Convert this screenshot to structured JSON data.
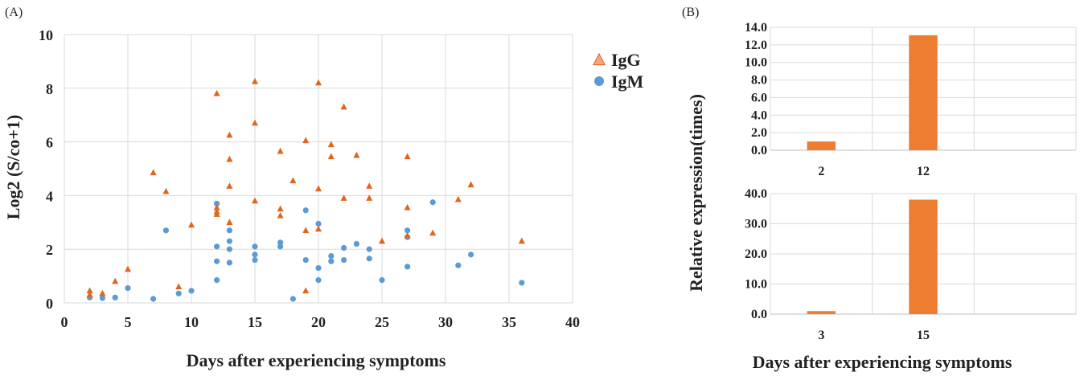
{
  "panels": {
    "a_label": "(A)",
    "b_label": "(B)"
  },
  "chart_data": [
    {
      "type": "scatter",
      "xlabel": "Days after experiencing symptoms",
      "ylabel": "Log2 (S/co+1)",
      "xlim": [
        0,
        40
      ],
      "ylim": [
        0,
        10
      ],
      "xticks": [
        "0",
        "5",
        "10",
        "15",
        "20",
        "25",
        "30",
        "35",
        "40"
      ],
      "yticks": [
        "0",
        "2",
        "4",
        "6",
        "8",
        "10"
      ],
      "legend_position": "top-right",
      "series": [
        {
          "name": "IgG",
          "marker": "triangle",
          "color": "#E0661D",
          "legend_color": "#F4A582",
          "points": [
            [
              2,
              0.45
            ],
            [
              2,
              0.3
            ],
            [
              3,
              0.35
            ],
            [
              4,
              0.8
            ],
            [
              5,
              1.25
            ],
            [
              7,
              4.85
            ],
            [
              8,
              4.15
            ],
            [
              9,
              0.6
            ],
            [
              10,
              2.9
            ],
            [
              12,
              7.8
            ],
            [
              12,
              3.55
            ],
            [
              12,
              3.4
            ],
            [
              12,
              3.3
            ],
            [
              13,
              6.25
            ],
            [
              13,
              5.35
            ],
            [
              13,
              4.35
            ],
            [
              13,
              3.0
            ],
            [
              15,
              8.25
            ],
            [
              15,
              6.7
            ],
            [
              15,
              3.8
            ],
            [
              17,
              5.65
            ],
            [
              17,
              3.5
            ],
            [
              17,
              3.25
            ],
            [
              18,
              4.55
            ],
            [
              19,
              6.05
            ],
            [
              19,
              2.7
            ],
            [
              19,
              0.45
            ],
            [
              20,
              8.2
            ],
            [
              20,
              4.25
            ],
            [
              20,
              2.75
            ],
            [
              21,
              5.9
            ],
            [
              21,
              5.45
            ],
            [
              22,
              7.3
            ],
            [
              22,
              3.9
            ],
            [
              23,
              5.5
            ],
            [
              24,
              4.35
            ],
            [
              24,
              3.9
            ],
            [
              25,
              2.3
            ],
            [
              27,
              5.45
            ],
            [
              27,
              3.55
            ],
            [
              27,
              2.5
            ],
            [
              29,
              2.6
            ],
            [
              31,
              3.85
            ],
            [
              32,
              4.4
            ],
            [
              36,
              2.3
            ]
          ]
        },
        {
          "name": "IgM",
          "marker": "circle",
          "color": "#5B9BD5",
          "legend_color": "#5B9BD5",
          "points": [
            [
              2,
              0.2
            ],
            [
              3,
              0.18
            ],
            [
              4,
              0.2
            ],
            [
              5,
              0.55
            ],
            [
              7,
              0.15
            ],
            [
              8,
              2.7
            ],
            [
              9,
              0.35
            ],
            [
              10,
              0.45
            ],
            [
              12,
              3.7
            ],
            [
              12,
              2.1
            ],
            [
              12,
              1.55
            ],
            [
              12,
              0.85
            ],
            [
              13,
              2.7
            ],
            [
              13,
              2.3
            ],
            [
              13,
              2.0
            ],
            [
              13,
              1.5
            ],
            [
              15,
              2.1
            ],
            [
              15,
              1.8
            ],
            [
              15,
              1.6
            ],
            [
              17,
              2.25
            ],
            [
              17,
              2.1
            ],
            [
              18,
              0.15
            ],
            [
              19,
              3.45
            ],
            [
              19,
              1.6
            ],
            [
              20,
              2.95
            ],
            [
              20,
              1.3
            ],
            [
              20,
              0.85
            ],
            [
              21,
              1.75
            ],
            [
              21,
              1.55
            ],
            [
              22,
              2.05
            ],
            [
              22,
              1.6
            ],
            [
              23,
              2.2
            ],
            [
              24,
              2.0
            ],
            [
              24,
              1.65
            ],
            [
              25,
              0.85
            ],
            [
              27,
              2.7
            ],
            [
              27,
              2.45
            ],
            [
              27,
              1.35
            ],
            [
              29,
              3.75
            ],
            [
              31,
              1.4
            ],
            [
              32,
              1.8
            ],
            [
              36,
              0.75
            ]
          ]
        }
      ]
    },
    {
      "type": "bar",
      "categories": [
        "2",
        "12",
        ""
      ],
      "values": [
        1.0,
        13.1,
        null
      ],
      "ylim": [
        0,
        14
      ],
      "yticks": [
        "0.0",
        "2.0",
        "4.0",
        "6.0",
        "8.0",
        "10.0",
        "12.0",
        "14.0"
      ],
      "color": "#ED7D31"
    },
    {
      "type": "bar",
      "categories": [
        "3",
        "15",
        ""
      ],
      "values": [
        1.0,
        38.0,
        null
      ],
      "ylim": [
        0,
        40
      ],
      "yticks": [
        "0.0",
        "10.0",
        "20.0",
        "30.0",
        "40.0"
      ],
      "color": "#ED7D31"
    }
  ],
  "panel_b": {
    "ylabel": "Relative expression(times)",
    "xlabel": "Days after experiencing symptoms"
  }
}
